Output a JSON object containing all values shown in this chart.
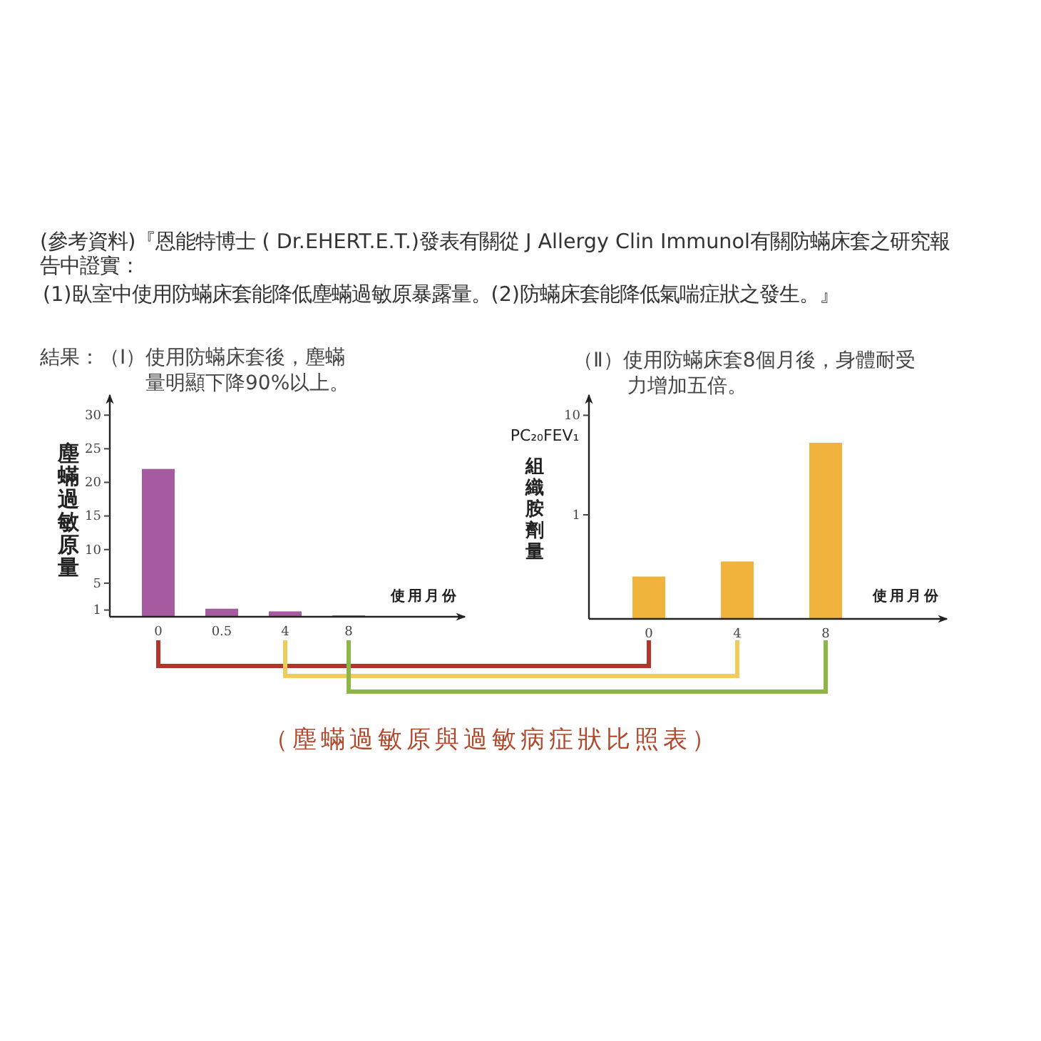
{
  "chart_data": [
    {
      "type": "bar",
      "title": "結果：（Ⅰ）使用防蟎床套後，塵蟎量明顯下降90%以上。",
      "xlabel": "使用月份",
      "ylabel": "塵蟎過敏原量",
      "categories": [
        "0",
        "0.5",
        "4",
        "8"
      ],
      "values": [
        22,
        1.2,
        0.8,
        0.2
      ],
      "color": "#a65a9f",
      "ylim": [
        0,
        33
      ],
      "yticks": [
        1,
        5,
        10,
        15,
        20,
        25,
        30
      ],
      "annotations": [
        "(參考資料)『恩能特博士 ( Dr.EHERT.E.T.)發表有關從 J Allergy Clin Immunol有關防蟎床套之研究報告中證實：",
        "(1)臥室中使用防蟎床套能降低塵蟎過敏原暴露量。(2)防蟎床套能降低氣喘症狀之發生。』"
      ]
    },
    {
      "type": "bar",
      "title": "（Ⅱ）使用防蟎床套8個月後，身體耐受力增加五倍。",
      "xlabel": "使用月份",
      "ylabel": "PC₂₀FEV₁\n組織胺劑量",
      "categories": [
        "0",
        "4",
        "8"
      ],
      "values": [
        0.24,
        0.34,
        5.3
      ],
      "color": "#f0b43c",
      "log": true,
      "ylim": [
        0.09,
        16
      ],
      "yticks": [
        1,
        10
      ],
      "annotations": [
        "（塵蟎過敏原與過敏病症狀比照表）"
      ]
    }
  ]
}
